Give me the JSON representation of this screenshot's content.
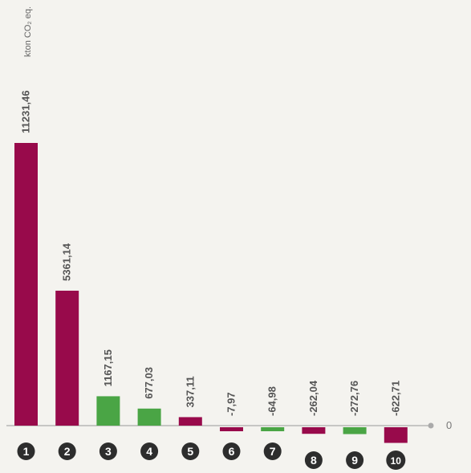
{
  "chart_data": {
    "type": "bar",
    "categories": [
      "1",
      "2",
      "3",
      "4",
      "5",
      "6",
      "7",
      "8",
      "9",
      "10"
    ],
    "values": [
      11231.46,
      5361.14,
      1167.15,
      677.03,
      337.11,
      -7.97,
      -64.98,
      -262.04,
      -272.76,
      -622.71
    ],
    "value_labels": [
      "11231,46",
      "5361,14",
      "1167,15",
      "677,03",
      "337,11",
      "-7,97",
      "-64,98",
      "-262,04",
      "-272,76",
      "-622,71"
    ],
    "bar_colors": [
      "#980a4b",
      "#980a4b",
      "#4aa545",
      "#4aa545",
      "#980a4b",
      "#980a4b",
      "#4aa545",
      "#980a4b",
      "#4aa545",
      "#980a4b"
    ],
    "unit_label": "kton CO₂ eq.",
    "zero_label": "0",
    "title": "",
    "xlabel": "",
    "ylabel": "",
    "grid": false,
    "legend": "none"
  }
}
